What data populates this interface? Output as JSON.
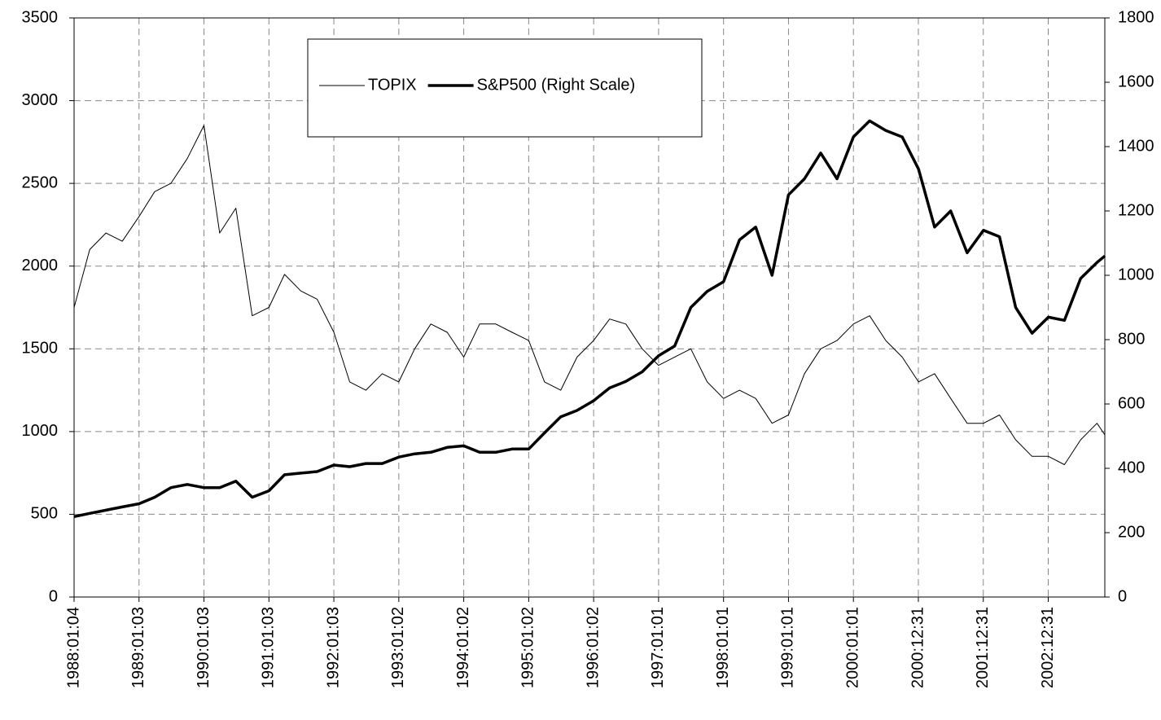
{
  "chart_data": {
    "type": "line",
    "x": [
      "1988-01-04",
      "1988-04-01",
      "1988-07-01",
      "1988-10-01",
      "1989-01-03",
      "1989-04-01",
      "1989-07-01",
      "1989-10-01",
      "1990-01-03",
      "1990-04-01",
      "1990-07-01",
      "1990-10-01",
      "1991-01-03",
      "1991-04-01",
      "1991-07-01",
      "1991-10-01",
      "1992-01-03",
      "1992-04-01",
      "1992-07-01",
      "1992-10-01",
      "1993-01-02",
      "1993-04-01",
      "1993-07-01",
      "1993-10-01",
      "1994-01-02",
      "1994-04-01",
      "1994-07-01",
      "1994-10-01",
      "1995-01-02",
      "1995-04-01",
      "1995-07-01",
      "1995-10-01",
      "1996-01-02",
      "1996-04-01",
      "1996-07-01",
      "1996-10-01",
      "1997-01-01",
      "1997-04-01",
      "1997-07-01",
      "1997-10-01",
      "1998-01-01",
      "1998-04-01",
      "1998-07-01",
      "1998-10-01",
      "1999-01-01",
      "1999-04-01",
      "1999-07-01",
      "1999-10-01",
      "2000-01-01",
      "2000-04-01",
      "2000-07-01",
      "2000-10-01",
      "2001-01-01",
      "2001-04-01",
      "2001-07-01",
      "2001-10-01",
      "2002-01-01",
      "2002-04-01",
      "2002-07-01",
      "2002-10-01",
      "2003-01-01",
      "2003-04-01",
      "2003-07-01",
      "2003-10-01",
      "2003-11-14"
    ],
    "series": [
      {
        "name": "TOPIX",
        "color": "#000000",
        "line_width": 1,
        "values": [
          1750,
          2100,
          2200,
          2150,
          2300,
          2450,
          2500,
          2650,
          2850,
          2200,
          2350,
          1700,
          1750,
          1950,
          1850,
          1800,
          1600,
          1300,
          1250,
          1350,
          1300,
          1500,
          1650,
          1600,
          1450,
          1650,
          1650,
          1600,
          1550,
          1300,
          1250,
          1450,
          1550,
          1680,
          1650,
          1500,
          1400,
          1450,
          1500,
          1300,
          1200,
          1250,
          1200,
          1050,
          1100,
          1350,
          1500,
          1550,
          1650,
          1700,
          1550,
          1450,
          1300,
          1350,
          1200,
          1050,
          1050,
          1100,
          950,
          850,
          850,
          800,
          950,
          1050,
          980
        ]
      },
      {
        "name": "S&P500 (Right Scale)",
        "color": "#000000",
        "line_width": 3.5,
        "axis": "y2",
        "values": [
          250,
          260,
          270,
          280,
          290,
          310,
          340,
          350,
          340,
          340,
          360,
          310,
          330,
          380,
          385,
          390,
          410,
          405,
          415,
          415,
          435,
          445,
          450,
          465,
          470,
          450,
          450,
          460,
          460,
          510,
          560,
          580,
          610,
          650,
          670,
          700,
          750,
          780,
          900,
          950,
          980,
          1110,
          1150,
          1000,
          1250,
          1300,
          1380,
          1300,
          1430,
          1480,
          1450,
          1430,
          1330,
          1150,
          1200,
          1070,
          1140,
          1120,
          900,
          820,
          870,
          860,
          990,
          1040,
          1060
        ]
      }
    ],
    "xlim": [
      "1988-01-04",
      "2003-11-14"
    ],
    "xticks": [
      {
        "value": "1988-01-04",
        "label": "1988:01:04"
      },
      {
        "value": "1989-01-03",
        "label": "1989:01:03"
      },
      {
        "value": "1990-01-03",
        "label": "1990:01:03"
      },
      {
        "value": "1991-01-03",
        "label": "1991:01:03"
      },
      {
        "value": "1992-01-03",
        "label": "1992:01:03"
      },
      {
        "value": "1993-01-02",
        "label": "1993:01:02"
      },
      {
        "value": "1994-01-02",
        "label": "1994:01:02"
      },
      {
        "value": "1995-01-02",
        "label": "1995:01:02"
      },
      {
        "value": "1996-01-02",
        "label": "1996:01:02"
      },
      {
        "value": "1997-01-01",
        "label": "1997:01:01"
      },
      {
        "value": "1998-01-01",
        "label": "1998:01:01"
      },
      {
        "value": "1999-01-01",
        "label": "1999:01:01"
      },
      {
        "value": "2000-01-01",
        "label": "2000:01:01"
      },
      {
        "value": "2000-12-31",
        "label": "2000:12:31"
      },
      {
        "value": "2001-12-31",
        "label": "2001:12:31"
      },
      {
        "value": "2002-12-31",
        "label": "2002:12:31"
      }
    ],
    "ylim": [
      0,
      3500
    ],
    "yticks": [
      0,
      500,
      1000,
      1500,
      2000,
      2500,
      3000,
      3500
    ],
    "y2lim": [
      0,
      1800
    ],
    "y2ticks": [
      0,
      200,
      400,
      600,
      800,
      1000,
      1200,
      1400,
      1600,
      1800
    ],
    "grid": true,
    "legend": "top"
  }
}
